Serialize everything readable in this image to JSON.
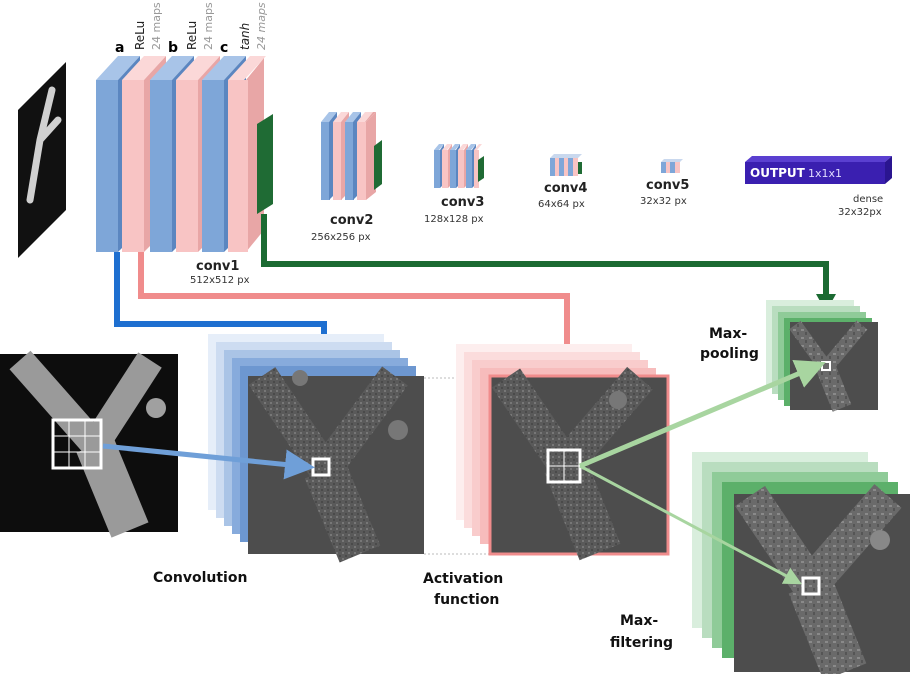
{
  "colors": {
    "blue_map": "#7ea6d8",
    "blue_side": "#5b86c0",
    "pink_map": "#f8c4c4",
    "pink_side": "#e8a6a6",
    "green_map": "#1f6b34",
    "blue_arrow": "#1e6fd0",
    "pink_arrow": "#f08c8c",
    "green_arrow": "#1b6a32",
    "light_green_arrow": "#a8d5a0",
    "output_purple": "#3a1fb0"
  },
  "layer_labels": {
    "a": {
      "letter": "a",
      "activation": "ReLu",
      "maps": "24 maps"
    },
    "b": {
      "letter": "b",
      "activation": "ReLu",
      "maps": "24 maps"
    },
    "c": {
      "letter": "c",
      "activation": "tanh",
      "maps": "24 maps"
    }
  },
  "stages": [
    {
      "name": "conv1",
      "size": "512x512 px"
    },
    {
      "name": "conv2",
      "size": "256x256 px"
    },
    {
      "name": "conv3",
      "size": "128x128 px"
    },
    {
      "name": "conv4",
      "size": "64x64 px"
    },
    {
      "name": "conv5",
      "size": "32x32 px"
    }
  ],
  "output": {
    "label": "OUTPUT",
    "dims": "1x1x1",
    "type": "dense",
    "size": "32x32px"
  },
  "operations": {
    "convolution": "Convolution",
    "activation_line1": "Activation",
    "activation_line2": "function",
    "maxpool_line1": "Max-",
    "maxpool_line2": "pooling",
    "maxfilter_line1": "Max-",
    "maxfilter_line2": "filtering"
  }
}
